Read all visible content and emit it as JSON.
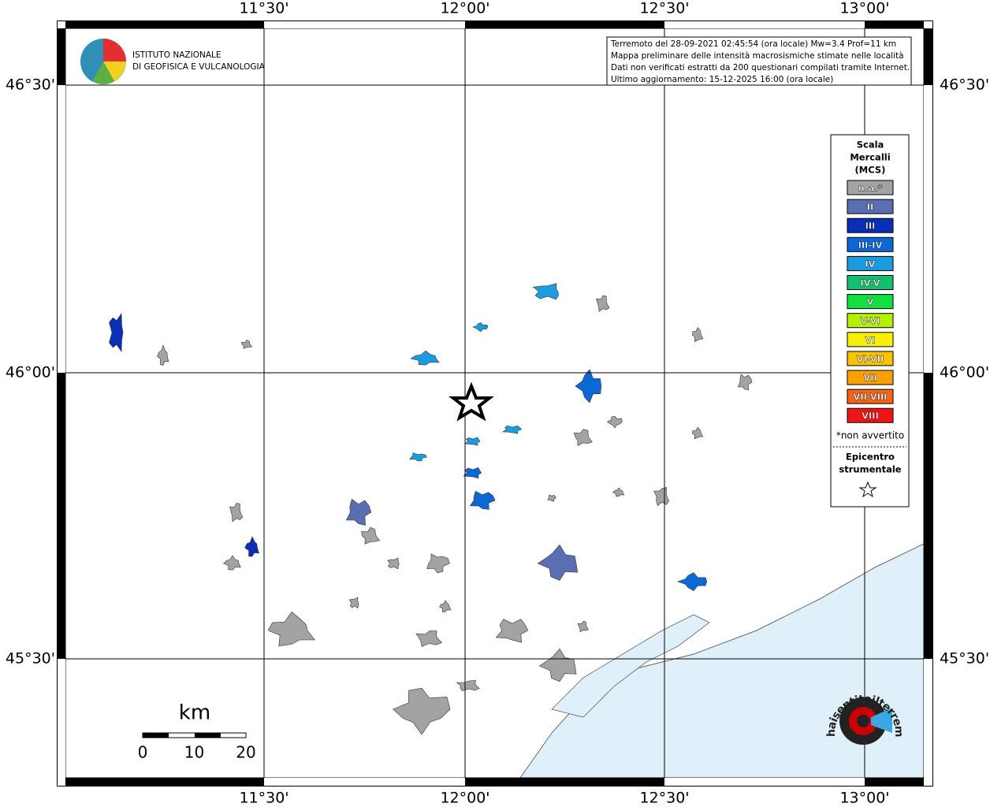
{
  "axes": {
    "top_labels": [
      "11°30'",
      "12°00'",
      "12°30'",
      "13°00'"
    ],
    "bottom_labels": [
      "11°30'",
      "12°00'",
      "12°30'",
      "13°00'"
    ],
    "left_labels": [
      "46°30'",
      "46°00'",
      "45°30'"
    ],
    "right_labels": [
      "46°30'",
      "46°00'",
      "45°30'"
    ]
  },
  "logo": {
    "line1": "ISTITUTO NAZIONALE",
    "line2": "DI GEOFISICA E VULCANOLOGIA"
  },
  "info": {
    "lines": [
      "Terremoto del 28-09-2021 02:45:54 (ora locale) Mw=3.4 Prof=11 km",
      "Mappa preliminare delle intensità macrosismiche stimate nelle località",
      "Dati non verificati estratti da 200 questionari compilati tramite Internet.",
      "Ultimo aggiornamento: 15-12-2025 16:00 (ora locale)"
    ]
  },
  "legend": {
    "title": [
      "Scala",
      "Mercalli",
      "(MCS)"
    ],
    "items": [
      {
        "label": "n.a.*",
        "color": "#a3a3a3"
      },
      {
        "label": "II",
        "color": "#5a6fb2"
      },
      {
        "label": "III",
        "color": "#0b2fb4"
      },
      {
        "label": "III-IV",
        "color": "#0b68d6"
      },
      {
        "label": "IV",
        "color": "#1b9be0"
      },
      {
        "label": "IV-V",
        "color": "#12c070"
      },
      {
        "label": "V",
        "color": "#12e040"
      },
      {
        "label": "V-VI",
        "color": "#b4f000"
      },
      {
        "label": "VI",
        "color": "#f8f000"
      },
      {
        "label": "VI-VII",
        "color": "#f8c400"
      },
      {
        "label": "VII",
        "color": "#f8a000"
      },
      {
        "label": "VII-VIII",
        "color": "#f86414"
      },
      {
        "label": "VIII",
        "color": "#f01414"
      }
    ],
    "note": "*non avvertito",
    "epicenter": [
      "Epicentro",
      "strumentale"
    ]
  },
  "scale_bar": {
    "unit": "km",
    "ticks": [
      0,
      10,
      20
    ]
  },
  "badge": {
    "text": "www.haisentitoilterremoto.it"
  }
}
